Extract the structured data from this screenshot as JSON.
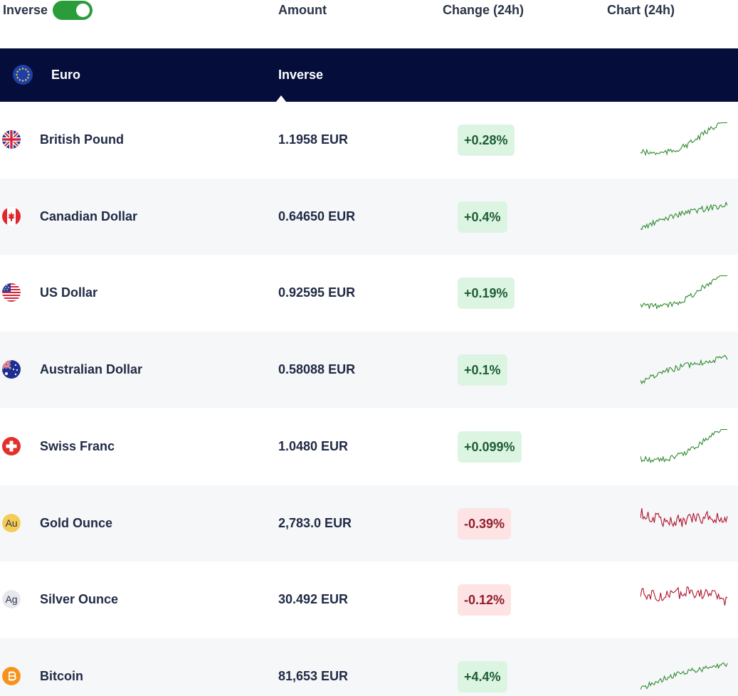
{
  "header": {
    "inverse_label": "Inverse",
    "toggle_on": true,
    "columns": [
      "Amount",
      "Change (24h)",
      "Chart (24h)"
    ]
  },
  "base": {
    "currency": "Euro",
    "mode_label": "Inverse",
    "flag_icon": "eu-flag-icon"
  },
  "colors": {
    "band": "#050d3a",
    "toggle": "#2a9d3a",
    "up_line": "#2e8b2e",
    "down_line": "#b0102a"
  },
  "rows": [
    {
      "name": "British Pound",
      "amount": "1.1958 EUR",
      "change": "+0.28%",
      "trend": "up",
      "icon": "uk-flag-icon"
    },
    {
      "name": "Canadian Dollar",
      "amount": "0.64650 EUR",
      "change": "+0.4%",
      "trend": "up",
      "icon": "canada-flag-icon"
    },
    {
      "name": "US Dollar",
      "amount": "0.92595 EUR",
      "change": "+0.19%",
      "trend": "up",
      "icon": "us-flag-icon"
    },
    {
      "name": "Australian Dollar",
      "amount": "0.58088 EUR",
      "change": "+0.1%",
      "trend": "up",
      "icon": "australia-flag-icon"
    },
    {
      "name": "Swiss Franc",
      "amount": "1.0480 EUR",
      "change": "+0.099%",
      "trend": "up",
      "icon": "swiss-flag-icon"
    },
    {
      "name": "Gold Ounce",
      "amount": "2,783.0 EUR",
      "change": "-0.39%",
      "trend": "down",
      "icon": "gold-icon",
      "symbol": "Au"
    },
    {
      "name": "Silver Ounce",
      "amount": "30.492 EUR",
      "change": "-0.12%",
      "trend": "down",
      "icon": "silver-icon",
      "symbol": "Ag"
    },
    {
      "name": "Bitcoin",
      "amount": "81,653 EUR",
      "change": "+4.4%",
      "trend": "up",
      "icon": "bitcoin-icon"
    }
  ]
}
